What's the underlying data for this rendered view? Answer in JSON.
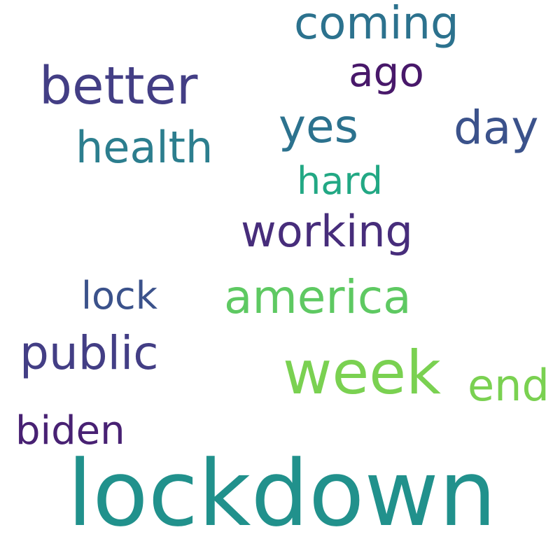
{
  "words": [
    {
      "text": "lockdown",
      "color": "#21918c"
    },
    {
      "text": "week",
      "color": "#7ad151"
    },
    {
      "text": "better",
      "color": "#433e85"
    },
    {
      "text": "coming",
      "color": "#2c728e"
    },
    {
      "text": "day",
      "color": "#3b528b"
    },
    {
      "text": "america",
      "color": "#5ec962"
    },
    {
      "text": "working",
      "color": "#472d7b"
    },
    {
      "text": "public",
      "color": "#433e85"
    },
    {
      "text": "health",
      "color": "#2c7e8e"
    },
    {
      "text": "yes",
      "color": "#2c728e"
    },
    {
      "text": "end",
      "color": "#7ad151"
    },
    {
      "text": "biden",
      "color": "#482173"
    },
    {
      "text": "lock",
      "color": "#3b528b"
    },
    {
      "text": "ago",
      "color": "#48186a"
    },
    {
      "text": "hard",
      "color": "#22a884"
    }
  ]
}
